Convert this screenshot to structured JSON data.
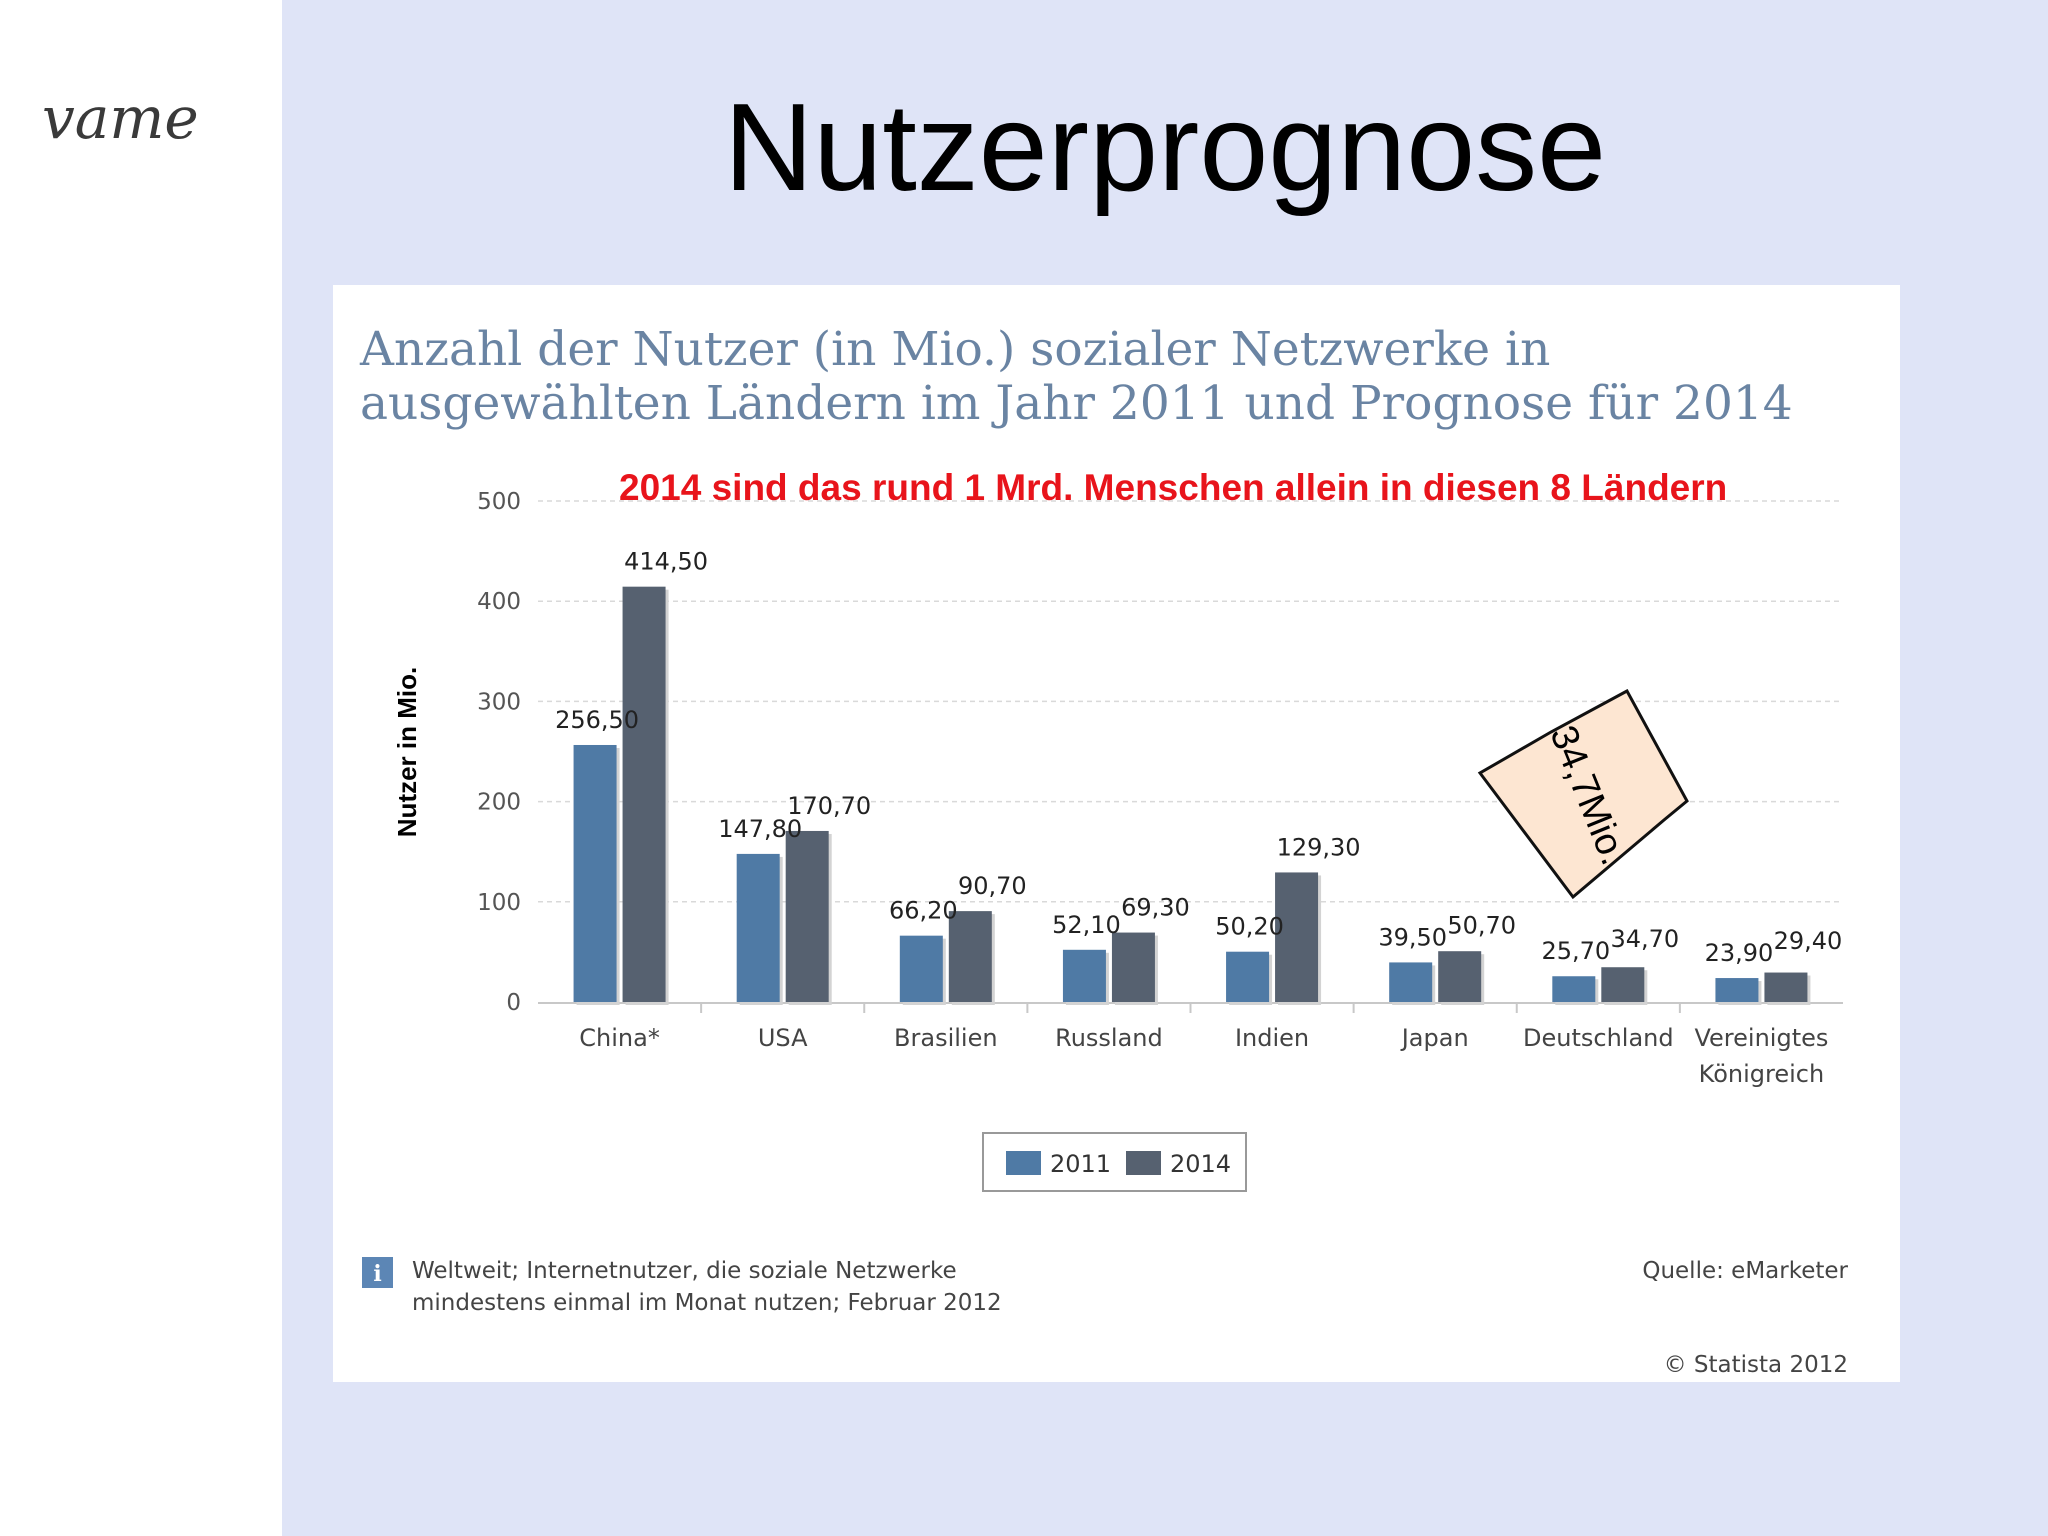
{
  "slide": {
    "title": "Nutzerprognose",
    "logo_text": "vame"
  },
  "colors": {
    "series_2011": "#4f7aa5",
    "series_2014": "#566170",
    "annotation": "#e8141b",
    "title": "#6a84a3",
    "callout_fill": "#fde6d2"
  },
  "chart_data": {
    "type": "bar",
    "title": "Anzahl der Nutzer (in Mio.) sozialer Netzwerke in ausgewählten Ländern im Jahr 2011 und Prognose für 2014",
    "title_lines": [
      "Anzahl der Nutzer (in Mio.) sozialer Netzwerke in",
      "ausgewählten Ländern im Jahr 2011 und Prognose für 2014"
    ],
    "ylabel": "Nutzer in Mio.",
    "xlabel": "",
    "ylim": [
      0,
      500
    ],
    "yticks": [
      "0",
      "100",
      "200",
      "300",
      "400",
      "500"
    ],
    "grid": true,
    "categories": [
      [
        "China*"
      ],
      [
        "USA"
      ],
      [
        "Brasilien"
      ],
      [
        "Russland"
      ],
      [
        "Indien"
      ],
      [
        "Japan"
      ],
      [
        "Deutschland"
      ],
      [
        "Vereinigtes",
        "Königreich"
      ]
    ],
    "series": [
      {
        "name": "2011",
        "values": [
          256.5,
          147.8,
          66.2,
          52.1,
          50.2,
          39.5,
          25.7,
          23.9
        ],
        "labels": [
          "256,50",
          "147,80",
          "66,20",
          "52,10",
          "50,20",
          "39,50",
          "25,70",
          "23,90"
        ]
      },
      {
        "name": "2014",
        "values": [
          414.5,
          170.7,
          90.7,
          69.3,
          129.3,
          50.7,
          34.7,
          29.4
        ],
        "labels": [
          "414,50",
          "170,70",
          "90,70",
          "69,30",
          "129,30",
          "50,70",
          "34,70",
          "29,40"
        ]
      }
    ],
    "legend": "bottom-center",
    "annotation": "2014 sind das rund 1 Mrd. Menschen allein in diesen 8 Ländern",
    "callout": "34,7Mio.",
    "footnote_icon": "i",
    "footnote_lines": [
      "Weltweit; Internetnutzer, die soziale Netzwerke",
      "mindestens einmal im Monat nutzen; Februar 2012"
    ],
    "source": "Quelle: eMarketer",
    "copyright": "© Statista 2012"
  }
}
